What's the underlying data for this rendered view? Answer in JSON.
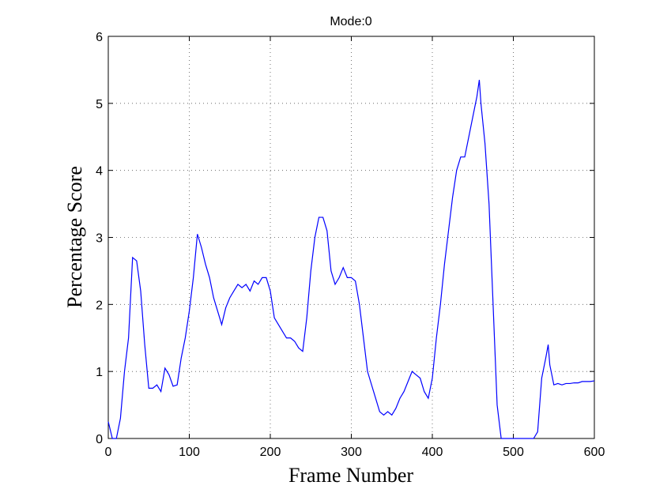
{
  "chart_data": {
    "type": "line",
    "title": "Mode:0",
    "x_label": "Frame Number",
    "y_label": "Percentage Score",
    "x": [
      0,
      5,
      10,
      15,
      20,
      25,
      30,
      35,
      40,
      45,
      50,
      55,
      60,
      65,
      70,
      75,
      80,
      85,
      90,
      95,
      100,
      105,
      110,
      115,
      120,
      125,
      130,
      135,
      140,
      145,
      150,
      155,
      160,
      165,
      170,
      175,
      180,
      185,
      190,
      195,
      200,
      205,
      210,
      215,
      220,
      225,
      230,
      235,
      240,
      245,
      250,
      255,
      260,
      265,
      270,
      275,
      280,
      285,
      290,
      295,
      300,
      305,
      310,
      315,
      320,
      325,
      330,
      335,
      340,
      345,
      350,
      355,
      360,
      365,
      370,
      375,
      380,
      385,
      390,
      395,
      400,
      405,
      410,
      415,
      420,
      425,
      430,
      435,
      440,
      445,
      450,
      455,
      458,
      460,
      465,
      470,
      475,
      480,
      485,
      490,
      495,
      500,
      505,
      510,
      515,
      520,
      525,
      530,
      535,
      540,
      543,
      545,
      550,
      555,
      560,
      565,
      570,
      575,
      580,
      585,
      590,
      595,
      600
    ],
    "series": [
      {
        "name": "Mode:0",
        "color": "#0000ff",
        "values": [
          0.25,
          0,
          0,
          0.3,
          1.0,
          1.5,
          2.7,
          2.65,
          2.2,
          1.4,
          0.75,
          0.75,
          0.8,
          0.7,
          1.05,
          0.95,
          0.78,
          0.8,
          1.2,
          1.5,
          1.9,
          2.4,
          3.05,
          2.85,
          2.6,
          2.4,
          2.1,
          1.9,
          1.7,
          1.95,
          2.1,
          2.2,
          2.3,
          2.25,
          2.3,
          2.2,
          2.35,
          2.3,
          2.4,
          2.4,
          2.2,
          1.8,
          1.7,
          1.6,
          1.5,
          1.5,
          1.45,
          1.35,
          1.3,
          1.8,
          2.5,
          3.0,
          3.3,
          3.3,
          3.1,
          2.5,
          2.3,
          2.4,
          2.55,
          2.4,
          2.4,
          2.35,
          2.0,
          1.5,
          1.0,
          0.8,
          0.6,
          0.4,
          0.35,
          0.4,
          0.35,
          0.45,
          0.6,
          0.7,
          0.85,
          1.0,
          0.95,
          0.9,
          0.7,
          0.6,
          0.9,
          1.5,
          2.0,
          2.6,
          3.1,
          3.6,
          4.0,
          4.2,
          4.2,
          4.5,
          4.8,
          5.1,
          5.35,
          5.0,
          4.4,
          3.5,
          2.0,
          0.5,
          0,
          0,
          0,
          0,
          0,
          0,
          0,
          0,
          0,
          0.1,
          0.9,
          1.2,
          1.4,
          1.1,
          0.8,
          0.82,
          0.8,
          0.82,
          0.82,
          0.83,
          0.83,
          0.85,
          0.85,
          0.85,
          0.86
        ]
      }
    ],
    "xlim": [
      0,
      600
    ],
    "xticks": [
      0,
      100,
      200,
      300,
      400,
      500,
      600
    ],
    "ylim": [
      0,
      6
    ],
    "yticks": [
      0,
      1,
      2,
      3,
      4,
      5,
      6
    ],
    "grid": true
  }
}
